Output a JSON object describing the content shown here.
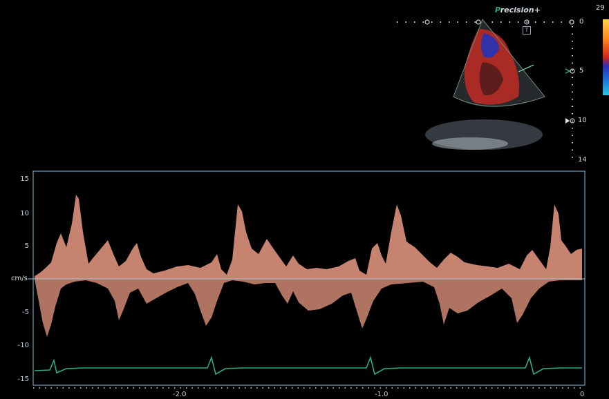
{
  "header": {
    "brand_initial": "P",
    "brand_rest": "recision",
    "brand_mark": "+"
  },
  "color_scale": {
    "top_value": "29",
    "colors": [
      "#ffd34a",
      "#ff8a1a",
      "#d2241a",
      "#2a2fb8",
      "#1b74d8",
      "#28c8e0"
    ]
  },
  "depth_scale": {
    "labels": [
      "0",
      "5",
      "10",
      "14"
    ]
  },
  "spectral": {
    "unit": "cm/s",
    "y_ticks": [
      "15",
      "10",
      "5",
      "-5",
      "-10",
      "-15"
    ],
    "x_ticks": [
      "-2.0",
      "-1.0",
      "0"
    ],
    "trace_color": "#f2a088",
    "baseline_color": "#9fc6d6",
    "ecg_color": "#2fa88a"
  }
}
